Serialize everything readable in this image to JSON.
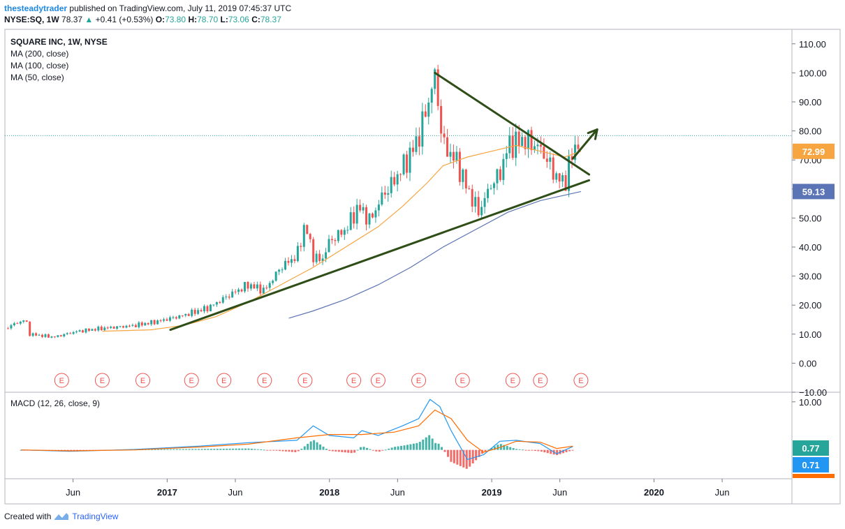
{
  "header": {
    "author": "thesteadytrader",
    "published_text": "published on TradingView.com, July 11, 2019 07:45:37 UTC",
    "symbol": "NYSE:SQ, 1W",
    "last": "78.37",
    "change_arrow": "▲",
    "change": "+0.41 (+0.53%)",
    "o_label": "O:",
    "o_value": "73.80",
    "h_label": "H:",
    "h_value": "78.70",
    "l_label": "L:",
    "l_value": "73.06",
    "c_label": "C:",
    "c_value": "78.37"
  },
  "legend": {
    "title": "SQUARE INC, 1W, NYSE",
    "items": [
      "MA (200, close)",
      "MA (100, close)",
      "MA (50, close)"
    ]
  },
  "macd_legend": "MACD (12, 26, close, 9)",
  "footer": {
    "created_with": "Created with",
    "brand": "TradingView"
  },
  "colors": {
    "up": "#26a69a",
    "down": "#ef5350",
    "ma50": "#f7a541",
    "ma200": "#5b74b5",
    "trend": "#2e4d17",
    "macd": "#2196f3",
    "signal": "#ff6d00"
  },
  "chart_data": [
    {
      "type": "candlestick",
      "title": "SQUARE INC, 1W, NYSE",
      "ylim": [
        -10,
        115
      ],
      "y_ticks": [
        "110.00",
        "100.00",
        "90.00",
        "80.00",
        "70.00",
        "60.00",
        "50.00",
        "40.00",
        "30.00",
        "20.00",
        "10.00",
        "0.00",
        "−10.00"
      ],
      "y_tick_values": [
        110,
        100,
        90,
        80,
        70,
        60,
        50,
        40,
        30,
        20,
        10,
        0,
        -10
      ],
      "x_ticks": [
        "Jun",
        "2017",
        "Jun",
        "2018",
        "Jun",
        "2019",
        "Jun",
        "2020",
        "Jun"
      ],
      "x_tick_dates": [
        2016.42,
        2017.0,
        2017.42,
        2018.0,
        2018.42,
        2019.0,
        2019.42,
        2020.0,
        2020.42
      ],
      "xlim": [
        2016.0,
        2020.85
      ],
      "last_price": 78.37,
      "price_labels": [
        {
          "text": "72.99",
          "value": 72.99,
          "series": "MA (50, close)"
        },
        {
          "text": "59.13",
          "value": 59.13,
          "series": "MA (200, close)"
        }
      ],
      "earnings_markers": [
        "E",
        "E",
        "E",
        "E",
        "E",
        "E",
        "E",
        "E",
        "E",
        "E",
        "E",
        "E",
        "E",
        "E"
      ],
      "earnings_dates": [
        2016.35,
        2016.6,
        2016.85,
        2017.15,
        2017.35,
        2017.6,
        2017.85,
        2018.15,
        2018.3,
        2018.55,
        2018.82,
        2019.13,
        2019.3,
        2019.55
      ],
      "price_path": [
        [
          2016.0,
          12
        ],
        [
          2016.08,
          14
        ],
        [
          2016.13,
          15
        ],
        [
          2016.15,
          10
        ],
        [
          2016.3,
          9
        ],
        [
          2016.45,
          11
        ],
        [
          2016.6,
          12
        ],
        [
          2016.8,
          13
        ],
        [
          2016.95,
          14.5
        ],
        [
          2017.1,
          16.5
        ],
        [
          2017.25,
          19
        ],
        [
          2017.4,
          24
        ],
        [
          2017.5,
          27
        ],
        [
          2017.6,
          25
        ],
        [
          2017.7,
          33
        ],
        [
          2017.8,
          37
        ],
        [
          2017.85,
          48
        ],
        [
          2017.9,
          37
        ],
        [
          2017.95,
          35
        ],
        [
          2018.0,
          42
        ],
        [
          2018.1,
          46
        ],
        [
          2018.18,
          54
        ],
        [
          2018.25,
          49
        ],
        [
          2018.32,
          57
        ],
        [
          2018.4,
          63
        ],
        [
          2018.5,
          72
        ],
        [
          2018.55,
          78
        ],
        [
          2018.6,
          88
        ],
        [
          2018.65,
          99
        ],
        [
          2018.7,
          75
        ],
        [
          2018.78,
          70
        ],
        [
          2018.85,
          60
        ],
        [
          2018.92,
          52
        ],
        [
          2019.0,
          62
        ],
        [
          2019.05,
          65
        ],
        [
          2019.1,
          75
        ],
        [
          2019.2,
          77
        ],
        [
          2019.3,
          74
        ],
        [
          2019.4,
          64
        ],
        [
          2019.45,
          62
        ],
        [
          2019.5,
          73
        ],
        [
          2019.55,
          78
        ]
      ],
      "ma50_path": [
        [
          2016.6,
          11
        ],
        [
          2016.9,
          11.5
        ],
        [
          2017.1,
          13
        ],
        [
          2017.3,
          16
        ],
        [
          2017.5,
          21
        ],
        [
          2017.7,
          27
        ],
        [
          2017.9,
          33
        ],
        [
          2018.1,
          40
        ],
        [
          2018.3,
          47
        ],
        [
          2018.45,
          54
        ],
        [
          2018.6,
          62
        ],
        [
          2018.7,
          68
        ],
        [
          2018.85,
          71
        ],
        [
          2019.0,
          73
        ],
        [
          2019.15,
          75
        ],
        [
          2019.3,
          73
        ],
        [
          2019.45,
          71
        ],
        [
          2019.55,
          72.99
        ]
      ],
      "ma200_path": [
        [
          2017.75,
          15.5
        ],
        [
          2017.9,
          18
        ],
        [
          2018.1,
          22
        ],
        [
          2018.3,
          27
        ],
        [
          2018.5,
          33
        ],
        [
          2018.7,
          40
        ],
        [
          2018.9,
          46
        ],
        [
          2019.1,
          52
        ],
        [
          2019.3,
          56
        ],
        [
          2019.55,
          59.13
        ]
      ],
      "trendlines": [
        {
          "name": "support",
          "from": [
            2017.02,
            11.5
          ],
          "to": [
            2019.6,
            63
          ]
        },
        {
          "name": "resistance",
          "from": [
            2018.65,
            100
          ],
          "to": [
            2019.6,
            65
          ]
        }
      ],
      "arrow": {
        "from": [
          2019.5,
          70.5
        ],
        "to": [
          2019.65,
          80.5
        ]
      }
    },
    {
      "type": "macd",
      "title": "MACD (12, 26, close, 9)",
      "ylim": [
        -6,
        12
      ],
      "y_ticks": [
        "10.00"
      ],
      "y_tick_values": [
        10
      ],
      "value_labels": [
        {
          "text": "0.77",
          "value": 0.77,
          "series": "MACD histogram"
        },
        {
          "text": "0.71",
          "value": 0.71,
          "series": "MACD line"
        }
      ],
      "macd_line": [
        [
          2016.1,
          0
        ],
        [
          2016.4,
          -0.3
        ],
        [
          2016.8,
          0.1
        ],
        [
          2017.2,
          0.8
        ],
        [
          2017.5,
          1.5
        ],
        [
          2017.8,
          2
        ],
        [
          2017.9,
          5
        ],
        [
          2018.0,
          3
        ],
        [
          2018.15,
          2.5
        ],
        [
          2018.2,
          4
        ],
        [
          2018.3,
          3
        ],
        [
          2018.45,
          5
        ],
        [
          2018.55,
          6.5
        ],
        [
          2018.62,
          10.5
        ],
        [
          2018.68,
          9
        ],
        [
          2018.75,
          4
        ],
        [
          2018.85,
          -2
        ],
        [
          2018.95,
          -1
        ],
        [
          2019.05,
          1.8
        ],
        [
          2019.15,
          2
        ],
        [
          2019.3,
          1.3
        ],
        [
          2019.4,
          -0.8
        ],
        [
          2019.5,
          0.71
        ]
      ],
      "signal_line": [
        [
          2016.1,
          0
        ],
        [
          2016.4,
          -0.2
        ],
        [
          2016.8,
          0
        ],
        [
          2017.2,
          0.6
        ],
        [
          2017.5,
          1.2
        ],
        [
          2017.8,
          2.5
        ],
        [
          2018.0,
          3.2
        ],
        [
          2018.2,
          3.2
        ],
        [
          2018.4,
          3.7
        ],
        [
          2018.55,
          5
        ],
        [
          2018.65,
          8.3
        ],
        [
          2018.75,
          6.5
        ],
        [
          2018.85,
          2
        ],
        [
          2018.95,
          -0.5
        ],
        [
          2019.05,
          0.5
        ],
        [
          2019.15,
          1.8
        ],
        [
          2019.3,
          1.6
        ],
        [
          2019.4,
          0.3
        ],
        [
          2019.5,
          0.77
        ]
      ]
    }
  ]
}
